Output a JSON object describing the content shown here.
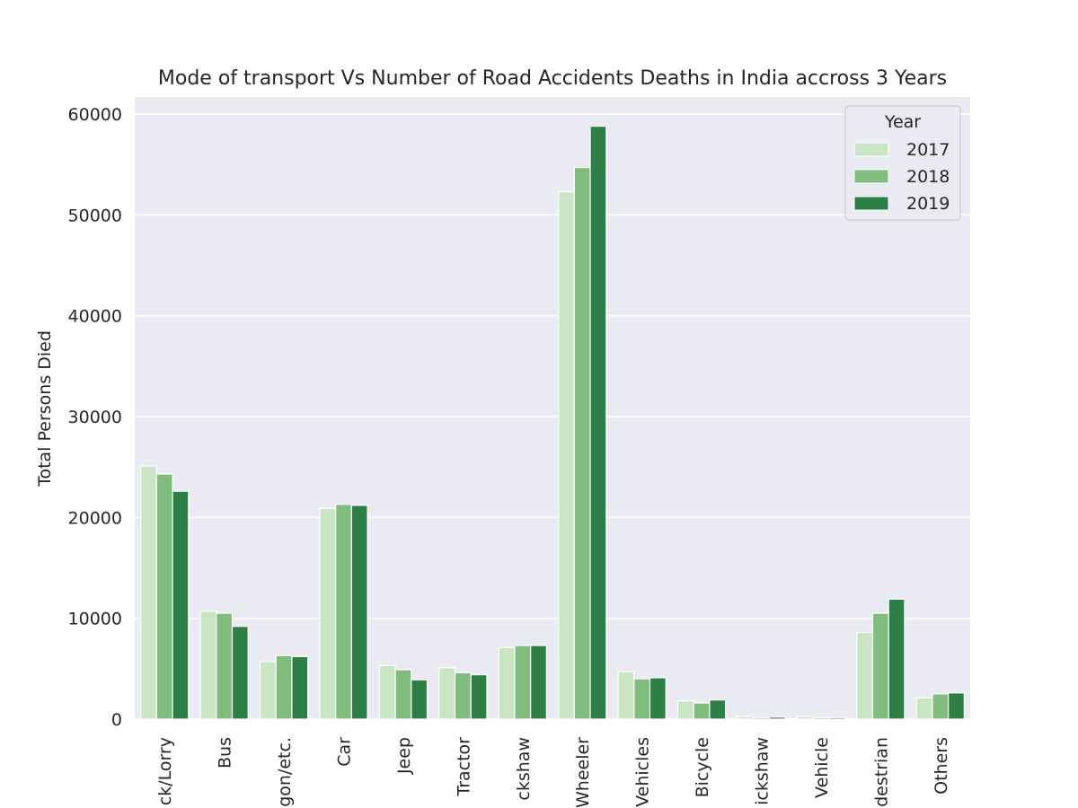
{
  "chart_data": {
    "type": "bar",
    "title": "Mode of transport Vs Number of Road Accidents Deaths in India accross 3 Years",
    "xlabel": "",
    "ylabel": "Total Persons Died",
    "ylim": [
      0,
      61700
    ],
    "yticks": [
      "0",
      "10000",
      "20000",
      "30000",
      "40000",
      "50000",
      "60000"
    ],
    "ytick_values": [
      0,
      10000,
      20000,
      30000,
      40000,
      50000,
      60000
    ],
    "categories": [
      "ck/Lorry",
      "Bus",
      "gon/etc.",
      "Car",
      "Jeep",
      "Tractor",
      "ckshaw",
      "Wheeler",
      "Vehicles",
      "Bicycle",
      "ickshaw",
      "Vehicle",
      "destrian",
      "Others"
    ],
    "legend": {
      "title": "Year",
      "placement": "upper right"
    },
    "grid": true,
    "series": [
      {
        "name": "2017",
        "color": "#c9e5c4",
        "values": [
          25100,
          10700,
          5700,
          20900,
          5300,
          5100,
          7100,
          52300,
          4700,
          1800,
          250,
          250,
          8600,
          2100
        ]
      },
      {
        "name": "2018",
        "color": "#7fbc7d",
        "values": [
          24300,
          10500,
          6300,
          21300,
          4900,
          4600,
          7300,
          54700,
          4000,
          1600,
          150,
          150,
          10500,
          2500
        ]
      },
      {
        "name": "2019",
        "color": "#2e7f47",
        "values": [
          22600,
          9200,
          6200,
          21200,
          3900,
          4400,
          7300,
          58800,
          4100,
          1900,
          200,
          150,
          11900,
          2600
        ]
      }
    ]
  }
}
